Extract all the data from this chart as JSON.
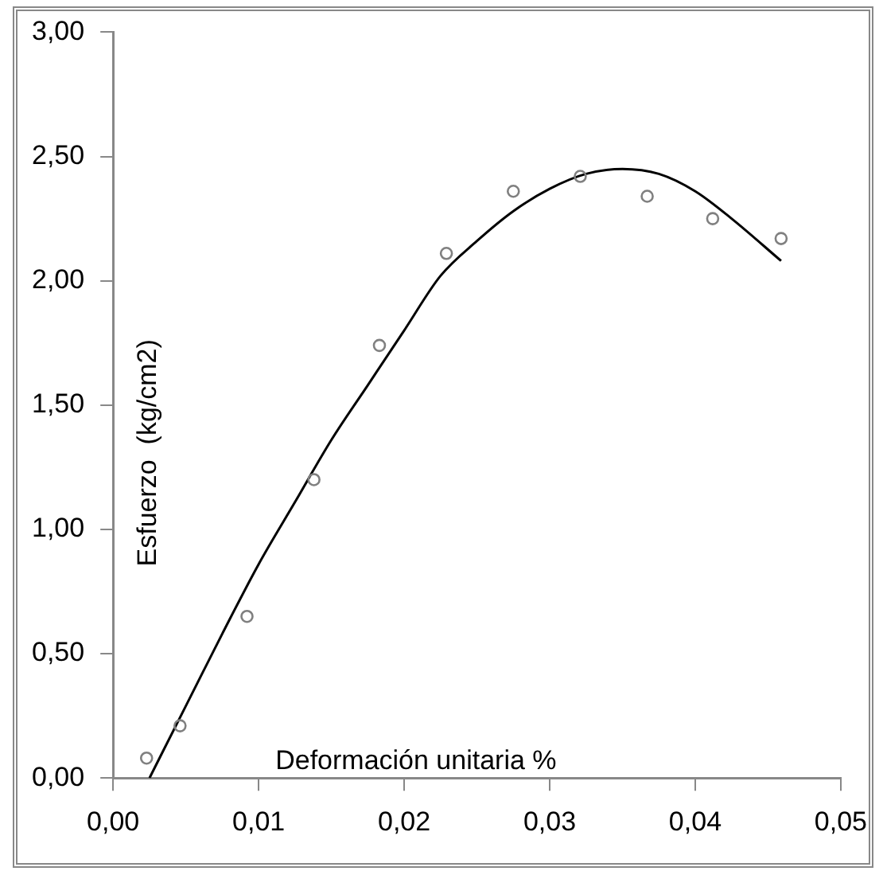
{
  "chart_data": {
    "type": "scatter",
    "xlabel": "Deformación unitaria %",
    "ylabel": "Esfuerzo  (kg/cm2)",
    "xlim": [
      0,
      0.05
    ],
    "xticks": [
      {
        "value": 0,
        "label": "0,00"
      },
      {
        "value": 0.01,
        "label": "0,01"
      },
      {
        "value": 0.02,
        "label": "0,02"
      },
      {
        "value": 0.03,
        "label": "0,03"
      },
      {
        "value": 0.04,
        "label": "0,04"
      },
      {
        "value": 0.05,
        "label": "0,05"
      }
    ],
    "ylim": [
      0,
      3
    ],
    "yticks": [
      {
        "value": 0,
        "label": "0,00"
      },
      {
        "value": 0.5,
        "label": "0,50"
      },
      {
        "value": 1,
        "label": "1,00"
      },
      {
        "value": 1.5,
        "label": "1,50"
      },
      {
        "value": 2,
        "label": "2,00"
      },
      {
        "value": 2.5,
        "label": "2,50"
      },
      {
        "value": 3,
        "label": "3,00"
      }
    ],
    "grid": false,
    "legend": false,
    "series": [
      {
        "color": "#808080",
        "marker": "circle",
        "x": [
          0.0023,
          0.0046,
          0.0092,
          0.0138,
          0.0183,
          0.0229,
          0.0275,
          0.0321,
          0.0367,
          0.0412,
          0.0459
        ],
        "values": [
          0.08,
          0.21,
          0.65,
          1.2,
          1.74,
          2.11,
          2.36,
          2.42,
          2.34,
          2.25,
          2.17
        ]
      },
      {
        "type": "line",
        "color": "#000000",
        "marker": "none",
        "line_style": "solid",
        "x": [
          0.0025,
          0.005,
          0.0075,
          0.01,
          0.0125,
          0.015,
          0.0175,
          0.02,
          0.0225,
          0.025,
          0.0275,
          0.03,
          0.0325,
          0.035,
          0.0375,
          0.04,
          0.0425,
          0.0459
        ],
        "values": [
          0,
          0.29,
          0.58,
          0.86,
          1.11,
          1.36,
          1.58,
          1.8,
          2.02,
          2.16,
          2.28,
          2.37,
          2.43,
          2.45,
          2.43,
          2.36,
          2.25,
          2.08
        ]
      }
    ]
  }
}
